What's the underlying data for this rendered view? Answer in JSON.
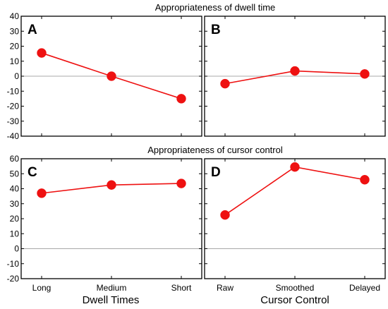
{
  "row_titles": [
    "Appropriateness of dwell time",
    "Appropriateness of cursor control"
  ],
  "chart_data": [
    {
      "panel": "A",
      "type": "line",
      "categories": [
        "Long",
        "Medium",
        "Short"
      ],
      "values": [
        15.5,
        0,
        -15
      ],
      "ylim": [
        -40,
        40
      ],
      "yticks": [
        -40,
        -30,
        -20,
        -10,
        0,
        10,
        20,
        30,
        40
      ],
      "zero_line": true,
      "grid": false,
      "color": "#ee1111"
    },
    {
      "panel": "B",
      "type": "line",
      "categories": [
        "Raw",
        "Smoothed",
        "Delayed"
      ],
      "values": [
        -5,
        3.5,
        1.5
      ],
      "ylim": [
        -40,
        40
      ],
      "yticks": [
        -40,
        -30,
        -20,
        -10,
        0,
        10,
        20,
        30,
        40
      ],
      "zero_line": true,
      "grid": false,
      "color": "#ee1111"
    },
    {
      "panel": "C",
      "type": "line",
      "categories": [
        "Long",
        "Medium",
        "Short"
      ],
      "values": [
        37,
        42.5,
        43.5
      ],
      "ylim": [
        -20,
        60
      ],
      "yticks": [
        -20,
        -10,
        0,
        10,
        20,
        30,
        40,
        50,
        60
      ],
      "xlabel": "Dwell Times",
      "zero_line": true,
      "grid": false,
      "color": "#ee1111"
    },
    {
      "panel": "D",
      "type": "line",
      "categories": [
        "Raw",
        "Smoothed",
        "Delayed"
      ],
      "values": [
        22.5,
        54.5,
        46
      ],
      "ylim": [
        -20,
        60
      ],
      "yticks": [
        -20,
        -10,
        0,
        10,
        20,
        30,
        40,
        50,
        60
      ],
      "xlabel": "Cursor Control",
      "zero_line": true,
      "grid": false,
      "color": "#ee1111"
    }
  ]
}
